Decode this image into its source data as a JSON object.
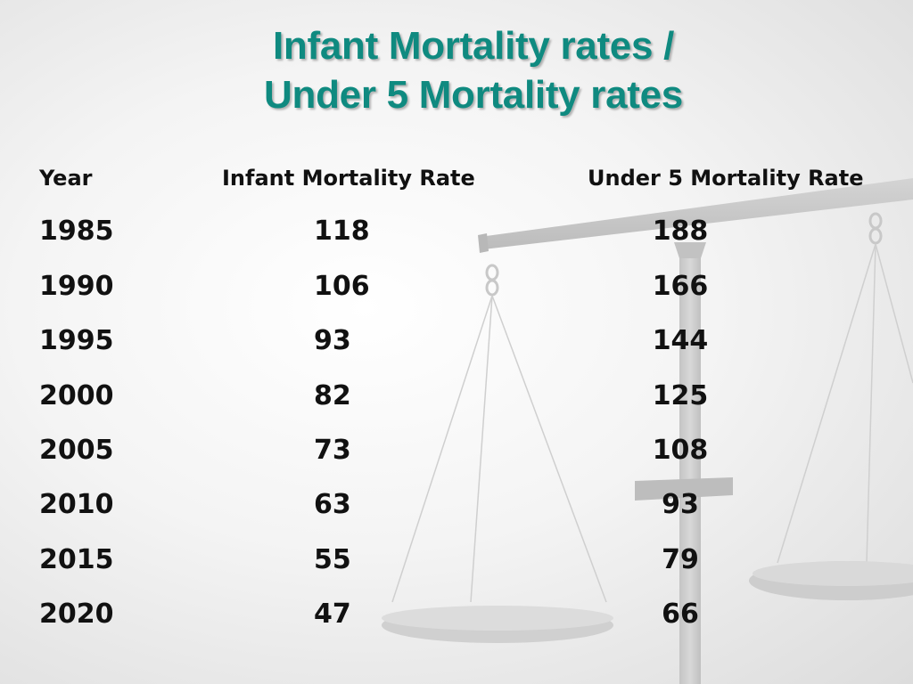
{
  "slide": {
    "title_line1": "Infant Mortality rates /",
    "title_line2": "Under 5 Mortality rates"
  },
  "table": {
    "headers": {
      "year": "Year",
      "infant": "Infant Mortality Rate",
      "under5": "Under 5 Mortality Rate"
    },
    "rows": [
      {
        "year": "1985",
        "infant": "118",
        "under5": "188"
      },
      {
        "year": "1990",
        "infant": "106",
        "under5": "166"
      },
      {
        "year": "1995",
        "infant": "93",
        "under5": "144"
      },
      {
        "year": "2000",
        "infant": "82",
        "under5": "125"
      },
      {
        "year": "2005",
        "infant": "73",
        "under5": "108"
      },
      {
        "year": "2010",
        "infant": "63",
        "under5": "93"
      },
      {
        "year": "2015",
        "infant": "55",
        "under5": "79"
      },
      {
        "year": "2020",
        "infant": "47",
        "under5": "66"
      }
    ]
  },
  "colors": {
    "title": "#0f8a80",
    "text": "#111111",
    "background": "#f4f4f4",
    "scales": "#c8c8c8"
  },
  "background_graphic": "balance-scales-icon"
}
